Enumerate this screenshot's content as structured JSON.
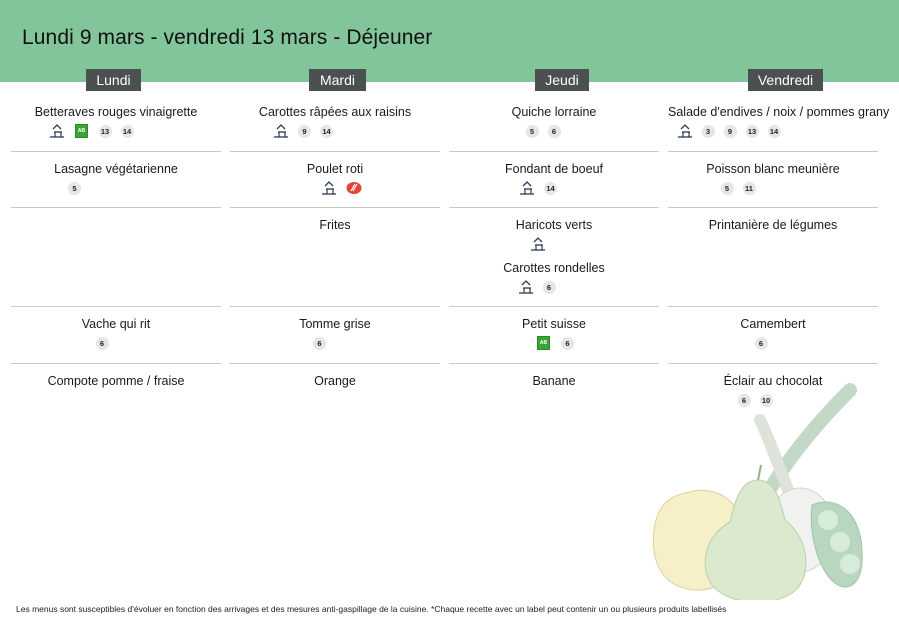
{
  "header": {
    "title": "Lundi 9 mars - vendredi 13 mars  - Déjeuner"
  },
  "days": [
    "Lundi",
    "Mardi",
    "Jeudi",
    "Vendredi"
  ],
  "rows": [
    [
      {
        "items": [
          {
            "name": "Betteraves rouges vinaigrette",
            "icons": [
              "fait-maison-icon",
              "bio-icon"
            ],
            "allergens": [
              "13",
              "14"
            ]
          }
        ]
      },
      {
        "items": [
          {
            "name": "Carottes râpées aux raisins",
            "icons": [
              "fait-maison-icon"
            ],
            "allergens": [
              "9",
              "14"
            ]
          }
        ]
      },
      {
        "items": [
          {
            "name": "Quiche lorraine",
            "icons": [],
            "allergens": [
              "5",
              "6"
            ]
          }
        ]
      },
      {
        "items": [
          {
            "name": "Salade d'endives / noix / pommes grany",
            "icons": [
              "fait-maison-icon"
            ],
            "allergens": [
              "3",
              "9",
              "13",
              "14"
            ]
          }
        ]
      }
    ],
    [
      {
        "items": [
          {
            "name": "Lasagne végétarienne",
            "icons": [],
            "allergens": [
              "5"
            ]
          }
        ]
      },
      {
        "items": [
          {
            "name": "Poulet roti",
            "icons": [
              "fait-maison-icon",
              "label-rouge-icon"
            ],
            "allergens": []
          }
        ]
      },
      {
        "items": [
          {
            "name": "Fondant de boeuf",
            "icons": [
              "fait-maison-icon"
            ],
            "allergens": [
              "14"
            ]
          }
        ]
      },
      {
        "items": [
          {
            "name": "Poisson blanc meunière",
            "icons": [],
            "allergens": [
              "5",
              "11"
            ]
          }
        ]
      }
    ],
    [
      {
        "items": []
      },
      {
        "items": [
          {
            "name": "Frites",
            "icons": [],
            "allergens": []
          }
        ]
      },
      {
        "items": [
          {
            "name": "Haricots verts",
            "icons": [
              "fait-maison-icon"
            ],
            "allergens": []
          },
          {
            "name": "Carottes rondelles",
            "icons": [
              "fait-maison-icon"
            ],
            "allergens": [
              "6"
            ]
          }
        ]
      },
      {
        "items": [
          {
            "name": "Printanière de légumes",
            "icons": [],
            "allergens": []
          }
        ]
      }
    ],
    [
      {
        "items": [
          {
            "name": "Vache qui rit",
            "icons": [],
            "allergens": [
              "6"
            ]
          }
        ]
      },
      {
        "items": [
          {
            "name": "Tomme grise",
            "icons": [],
            "allergens": [
              "6"
            ]
          }
        ]
      },
      {
        "items": [
          {
            "name": "Petit suisse",
            "icons": [
              "bio-icon"
            ],
            "allergens": [
              "6"
            ]
          }
        ]
      },
      {
        "items": [
          {
            "name": "Camembert",
            "icons": [],
            "allergens": [
              "6"
            ]
          }
        ]
      }
    ],
    [
      {
        "items": [
          {
            "name": "Compote pomme / fraise",
            "icons": [],
            "allergens": []
          }
        ]
      },
      {
        "items": [
          {
            "name": "Orange",
            "icons": [],
            "allergens": []
          }
        ]
      },
      {
        "items": [
          {
            "name": "Banane",
            "icons": [],
            "allergens": []
          }
        ]
      },
      {
        "items": [
          {
            "name": "Éclair au chocolat",
            "icons": [],
            "allergens": [
              "6",
              "10"
            ]
          }
        ]
      }
    ]
  ],
  "footer": {
    "note": "Les menus sont susceptibles d'évoluer en fonction des arrivages et des mesures anti-gaspillage de la cuisine. *Chaque recette avec un label peut contenir un ou plusieurs produits labellisés"
  },
  "colors": {
    "banner": "#82c59a",
    "day_header": "#4b5150",
    "separator": "#c9c9c9",
    "badge": "#e6e6e6"
  }
}
